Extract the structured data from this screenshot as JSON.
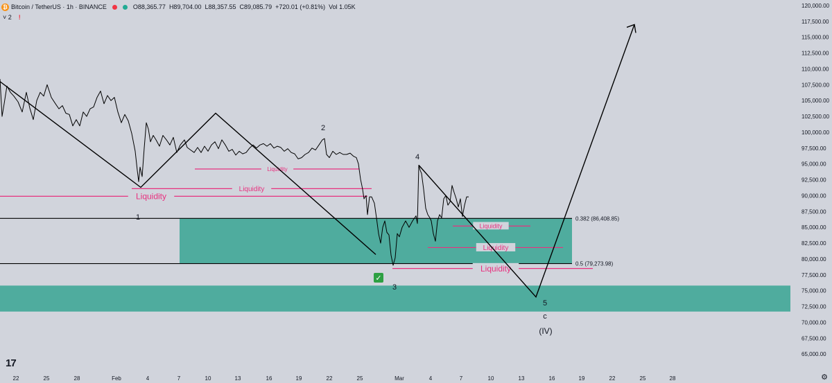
{
  "header": {
    "title": "Bitcoin / TetherUS · 1h · BINANCE",
    "open": "O88,365.77",
    "high": "H89,704.00",
    "low": "L88,357.55",
    "close": "C89,085.79",
    "change": "+720.01 (+0.81%)",
    "volume": "Vol 1.05K",
    "indicators_toggle": "˅ 2",
    "warning": "!"
  },
  "colors": {
    "background": "#d1d4dc",
    "zone": "#4fac9e",
    "liquidity": "#e8317f",
    "price_line": "#000000"
  },
  "chart_data": {
    "type": "line",
    "title": "",
    "ylim": [
      64000,
      120500
    ],
    "y_ticks": [
      "120,000.00",
      "117,500.00",
      "115,000.00",
      "112,500.00",
      "110,000.00",
      "107,500.00",
      "105,000.00",
      "102,500.00",
      "100,000.00",
      "97,500.00",
      "95,000.00",
      "92,500.00",
      "90,000.00",
      "87,500.00",
      "85,000.00",
      "82,500.00",
      "80,000.00",
      "77,500.00",
      "75,000.00",
      "72,500.00",
      "70,000.00",
      "67,500.00",
      "65,000.00"
    ],
    "x_ticks": [
      "22",
      "25",
      "28",
      "Feb",
      "4",
      "7",
      "10",
      "13",
      "16",
      "19",
      "22",
      "25",
      "Mar",
      "4",
      "7",
      "10",
      "13",
      "16",
      "19",
      "22",
      "25",
      "28"
    ],
    "series": [
      {
        "values": [
          [
            0,
            108400
          ],
          [
            3,
            102500
          ],
          [
            6,
            104500
          ],
          [
            10,
            107300
          ],
          [
            15,
            106300
          ],
          [
            20,
            105700
          ],
          [
            26,
            104800
          ],
          [
            32,
            103200
          ],
          [
            38,
            106300
          ],
          [
            43,
            103800
          ],
          [
            48,
            102000
          ],
          [
            53,
            105000
          ],
          [
            58,
            106300
          ],
          [
            63,
            105700
          ],
          [
            68,
            107500
          ],
          [
            74,
            105500
          ],
          [
            80,
            104500
          ],
          [
            85,
            103700
          ],
          [
            90,
            104200
          ],
          [
            95,
            103000
          ],
          [
            100,
            102800
          ],
          [
            105,
            101000
          ],
          [
            110,
            102000
          ],
          [
            115,
            101000
          ],
          [
            120,
            103200
          ],
          [
            125,
            102500
          ],
          [
            130,
            103700
          ],
          [
            135,
            104000
          ],
          [
            140,
            105500
          ],
          [
            145,
            106500
          ],
          [
            150,
            104500
          ],
          [
            155,
            105800
          ],
          [
            160,
            105000
          ],
          [
            165,
            105500
          ],
          [
            170,
            103200
          ],
          [
            175,
            101500
          ],
          [
            180,
            102800
          ],
          [
            185,
            101800
          ],
          [
            190,
            99800
          ],
          [
            195,
            97000
          ],
          [
            198,
            94000
          ],
          [
            200,
            92200
          ],
          [
            202,
            94500
          ],
          [
            205,
            93000
          ],
          [
            208,
            97500
          ],
          [
            211,
            101500
          ],
          [
            214,
            100500
          ],
          [
            217,
            98500
          ],
          [
            221,
            99500
          ],
          [
            225,
            98800
          ],
          [
            230,
            97800
          ],
          [
            235,
            99500
          ],
          [
            240,
            98800
          ],
          [
            245,
            98000
          ],
          [
            250,
            99200
          ],
          [
            255,
            96800
          ],
          [
            260,
            98000
          ],
          [
            266,
            98800
          ],
          [
            270,
            97600
          ],
          [
            275,
            97200
          ],
          [
            280,
            96800
          ],
          [
            285,
            97600
          ],
          [
            290,
            96800
          ],
          [
            295,
            97800
          ],
          [
            300,
            97000
          ],
          [
            305,
            98000
          ],
          [
            310,
            98500
          ],
          [
            315,
            97400
          ],
          [
            320,
            98800
          ],
          [
            325,
            98000
          ],
          [
            330,
            97000
          ],
          [
            335,
            97300
          ],
          [
            340,
            96400
          ],
          [
            345,
            97000
          ],
          [
            350,
            96600
          ],
          [
            355,
            96800
          ],
          [
            360,
            97500
          ],
          [
            365,
            98000
          ],
          [
            370,
            97500
          ],
          [
            375,
            98000
          ],
          [
            380,
            98200
          ],
          [
            385,
            97800
          ],
          [
            390,
            98200
          ],
          [
            395,
            97500
          ],
          [
            400,
            97800
          ],
          [
            405,
            97600
          ],
          [
            410,
            97000
          ],
          [
            415,
            97400
          ],
          [
            420,
            96800
          ],
          [
            425,
            96600
          ],
          [
            430,
            95800
          ],
          [
            435,
            96000
          ],
          [
            440,
            96500
          ],
          [
            445,
            96800
          ],
          [
            450,
            97500
          ],
          [
            455,
            97200
          ],
          [
            460,
            98000
          ],
          [
            465,
            98800
          ],
          [
            468,
            99000
          ],
          [
            471,
            96500
          ],
          [
            475,
            96000
          ],
          [
            480,
            97000
          ],
          [
            485,
            96500
          ],
          [
            490,
            96800
          ],
          [
            495,
            96500
          ],
          [
            500,
            96500
          ],
          [
            505,
            96700
          ],
          [
            510,
            96200
          ],
          [
            514,
            96000
          ],
          [
            517,
            95000
          ],
          [
            520,
            92600
          ],
          [
            523,
            91000
          ],
          [
            525,
            89500
          ],
          [
            528,
            90000
          ],
          [
            530,
            87000
          ],
          [
            533,
            89800
          ],
          [
            536,
            89800
          ],
          [
            540,
            88800
          ],
          [
            543,
            86500
          ],
          [
            546,
            84000
          ],
          [
            549,
            82500
          ],
          [
            552,
            85000
          ],
          [
            555,
            86000
          ],
          [
            558,
            84200
          ],
          [
            561,
            83800
          ],
          [
            564,
            80600
          ],
          [
            567,
            79000
          ],
          [
            570,
            80200
          ],
          [
            573,
            84000
          ],
          [
            576,
            83500
          ],
          [
            580,
            85000
          ],
          [
            585,
            86000
          ],
          [
            590,
            85000
          ],
          [
            595,
            86000
          ],
          [
            600,
            86800
          ],
          [
            602,
            85600
          ],
          [
            604,
            94800
          ],
          [
            606,
            94000
          ],
          [
            608,
            93500
          ],
          [
            611,
            91000
          ],
          [
            614,
            88000
          ],
          [
            617,
            87000
          ],
          [
            620,
            86500
          ],
          [
            622,
            86000
          ],
          [
            625,
            84000
          ],
          [
            628,
            82800
          ],
          [
            631,
            86000
          ],
          [
            634,
            87000
          ],
          [
            637,
            86500
          ],
          [
            640,
            89500
          ],
          [
            643,
            90000
          ],
          [
            646,
            88500
          ],
          [
            649,
            89000
          ],
          [
            652,
            91600
          ],
          [
            655,
            90500
          ],
          [
            658,
            89500
          ],
          [
            661,
            88200
          ],
          [
            664,
            89500
          ],
          [
            667,
            86700
          ],
          [
            670,
            88500
          ],
          [
            673,
            89800
          ],
          [
            676,
            89800
          ]
        ]
      }
    ],
    "liquidity_levels": [
      {
        "label": "Liquidity",
        "price": 89900
      },
      {
        "label": "Liquidity",
        "price": 91100
      },
      {
        "label": "Liquidity",
        "price": 94200
      },
      {
        "label": "Liquidity",
        "price": 85200
      },
      {
        "label": "Liquidity",
        "price": 81800
      },
      {
        "label": "Liquidity",
        "price": 78500
      }
    ],
    "fib_levels": [
      {
        "label": "0.382 (86,408.85)",
        "price": 86408.85
      },
      {
        "label": "0.5 (79,273.98)",
        "price": 79273.98
      }
    ],
    "demand_zones": [
      {
        "top": 86408.85,
        "bottom": 79273.98
      },
      {
        "top": 75800,
        "bottom": 71700
      }
    ],
    "wave_labels": [
      "1",
      "2",
      "3",
      "4",
      "5",
      "c",
      "(IV)"
    ],
    "check_mark": "✅",
    "projection_prices": [
      74000,
      72800,
      117000
    ]
  },
  "branding": {
    "logo_text": "17",
    "settings_icon": "gear-icon"
  }
}
